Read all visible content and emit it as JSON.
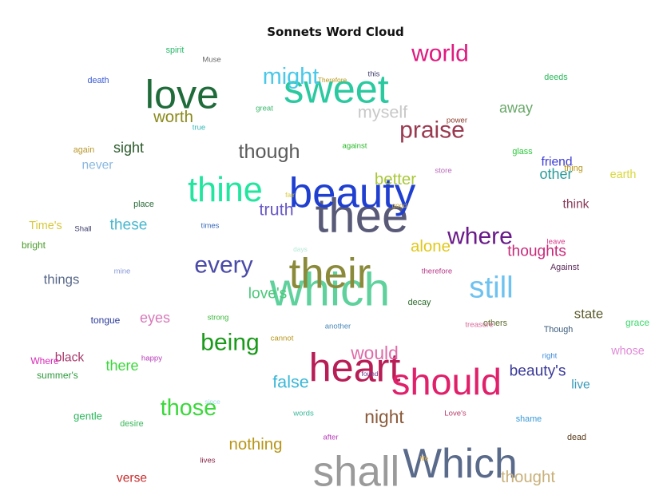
{
  "chart_data": {
    "type": "wordcloud",
    "title": "Sonnets Word Cloud",
    "words": [
      {
        "text": "thee",
        "size": 5.0,
        "color": "#585a78"
      },
      {
        "text": "which",
        "size": 4.9,
        "color": "#5ed19c"
      },
      {
        "text": "beauty",
        "size": 4.4,
        "color": "#1f3fd0"
      },
      {
        "text": "their",
        "size": 4.4,
        "color": "#8a8a3a"
      },
      {
        "text": "shall",
        "size": 4.4,
        "color": "#9a9a9a"
      },
      {
        "text": "Which",
        "size": 4.3,
        "color": "#5a6a8a"
      },
      {
        "text": "heart",
        "size": 4.2,
        "color": "#b81d55"
      },
      {
        "text": "sweet",
        "size": 4.2,
        "color": "#2bc9a0"
      },
      {
        "text": "love",
        "size": 4.2,
        "color": "#1f6b3a"
      },
      {
        "text": "should",
        "size": 3.9,
        "color": "#e0206a"
      },
      {
        "text": "thine",
        "size": 3.6,
        "color": "#22e6a0"
      },
      {
        "text": "still",
        "size": 3.2,
        "color": "#6ec2f0"
      },
      {
        "text": "world",
        "size": 2.5,
        "color": "#e01a80"
      },
      {
        "text": "might",
        "size": 2.4,
        "color": "#4ac8e8"
      },
      {
        "text": "every",
        "size": 2.5,
        "color": "#4a4aa8"
      },
      {
        "text": "being",
        "size": 2.5,
        "color": "#1a9a1a"
      },
      {
        "text": "where",
        "size": 2.5,
        "color": "#6a1a8a"
      },
      {
        "text": "praise",
        "size": 2.5,
        "color": "#9a3a50"
      },
      {
        "text": "those",
        "size": 2.4,
        "color": "#3ad83a"
      },
      {
        "text": "though",
        "size": 2.1,
        "color": "#5a5a5a"
      },
      {
        "text": "night",
        "size": 1.9,
        "color": "#8a5a3a"
      },
      {
        "text": "would",
        "size": 1.9,
        "color": "#e06aa8"
      },
      {
        "text": "truth",
        "size": 1.8,
        "color": "#6a5ac8"
      },
      {
        "text": "myself",
        "size": 1.8,
        "color": "#c8c8c8"
      },
      {
        "text": "alone",
        "size": 1.7,
        "color": "#e0c81a"
      },
      {
        "text": "false",
        "size": 1.8,
        "color": "#3ab8d8"
      },
      {
        "text": "nothing",
        "size": 1.7,
        "color": "#b8961a"
      },
      {
        "text": "thought",
        "size": 1.7,
        "color": "#c8b07a"
      },
      {
        "text": "better",
        "size": 1.7,
        "color": "#a8c83a"
      },
      {
        "text": "worth",
        "size": 1.7,
        "color": "#8a8a1a"
      },
      {
        "text": "thoughts",
        "size": 1.6,
        "color": "#c82a7a"
      },
      {
        "text": "beauty's",
        "size": 1.6,
        "color": "#3a3a9a"
      },
      {
        "text": "love's",
        "size": 1.6,
        "color": "#4ac87a"
      },
      {
        "text": "these",
        "size": 1.6,
        "color": "#4ab8d0"
      },
      {
        "text": "away",
        "size": 1.5,
        "color": "#6aa86a"
      },
      {
        "text": "sight",
        "size": 1.5,
        "color": "#2a5a2a"
      },
      {
        "text": "other",
        "size": 1.5,
        "color": "#2a9a9a"
      },
      {
        "text": "there",
        "size": 1.5,
        "color": "#3ad83a"
      },
      {
        "text": "eyes",
        "size": 1.5,
        "color": "#d87ab8"
      },
      {
        "text": "state",
        "size": 1.4,
        "color": "#5a5a2a"
      },
      {
        "text": "things",
        "size": 1.4,
        "color": "#5a6a8a"
      },
      {
        "text": "friend",
        "size": 1.3,
        "color": "#3a3ad8"
      },
      {
        "text": "verse",
        "size": 1.3,
        "color": "#c82a2a"
      },
      {
        "text": "never",
        "size": 1.3,
        "color": "#8ab8e0"
      },
      {
        "text": "think",
        "size": 1.3,
        "color": "#8a3a5a"
      },
      {
        "text": "black",
        "size": 1.3,
        "color": "#a83a6a"
      },
      {
        "text": "live",
        "size": 1.3,
        "color": "#3a9ab8"
      },
      {
        "text": "whose",
        "size": 1.2,
        "color": "#e08ad8"
      },
      {
        "text": "earth",
        "size": 1.2,
        "color": "#d8d83a"
      },
      {
        "text": "Time's",
        "size": 1.2,
        "color": "#d8c83a"
      },
      {
        "text": "gentle",
        "size": 1.1,
        "color": "#2ab85a"
      },
      {
        "text": "tongue",
        "size": 1.0,
        "color": "#2a3a9a"
      },
      {
        "text": "bright",
        "size": 1.0,
        "color": "#4a9a2a"
      },
      {
        "text": "grace",
        "size": 1.0,
        "color": "#3ad86a"
      },
      {
        "text": "Where",
        "size": 1.0,
        "color": "#d82ab8"
      },
      {
        "text": "summer's",
        "size": 1.0,
        "color": "#2a9a3a"
      },
      {
        "text": "glass",
        "size": 0.9,
        "color": "#2ac83a"
      },
      {
        "text": "deeds",
        "size": 0.9,
        "color": "#2ab85a"
      },
      {
        "text": "spirit",
        "size": 0.9,
        "color": "#2ab86a"
      },
      {
        "text": "death",
        "size": 0.9,
        "color": "#3a5ad8"
      },
      {
        "text": "again",
        "size": 0.9,
        "color": "#b8962a"
      },
      {
        "text": "place",
        "size": 0.9,
        "color": "#2a6a3a"
      },
      {
        "text": "shame",
        "size": 0.9,
        "color": "#3a9ad8"
      },
      {
        "text": "dead",
        "size": 0.9,
        "color": "#5a3a1a"
      },
      {
        "text": "Though",
        "size": 0.9,
        "color": "#3a5a7a"
      },
      {
        "text": "others",
        "size": 0.9,
        "color": "#5a6a2a"
      },
      {
        "text": "decay",
        "size": 0.9,
        "color": "#2a6a2a"
      },
      {
        "text": "thing",
        "size": 0.9,
        "color": "#b8961a"
      },
      {
        "text": "desire",
        "size": 0.9,
        "color": "#3ab85a"
      },
      {
        "text": "Against",
        "size": 0.9,
        "color": "#5a2a5a"
      },
      {
        "text": "right",
        "size": 0.8,
        "color": "#3a8ad8"
      },
      {
        "text": "Muse",
        "size": 0.8,
        "color": "#6a6a6a"
      },
      {
        "text": "this",
        "size": 0.8,
        "color": "#3a3a6a"
      },
      {
        "text": "power",
        "size": 0.8,
        "color": "#8a3a2a"
      },
      {
        "text": "store",
        "size": 0.8,
        "color": "#b86ab8"
      },
      {
        "text": "great",
        "size": 0.8,
        "color": "#3ab86a"
      },
      {
        "text": "true",
        "size": 0.8,
        "color": "#3ab8b8"
      },
      {
        "text": "strong",
        "size": 0.8,
        "color": "#3ab83a"
      },
      {
        "text": "cannot",
        "size": 0.8,
        "color": "#b8961a"
      },
      {
        "text": "another",
        "size": 0.8,
        "color": "#4a8ab8"
      },
      {
        "text": "treasure",
        "size": 0.8,
        "color": "#d86a9a"
      },
      {
        "text": "therefore",
        "size": 0.8,
        "color": "#b83a8a"
      },
      {
        "text": "leave",
        "size": 0.8,
        "color": "#d83a8a"
      },
      {
        "text": "happy",
        "size": 0.8,
        "color": "#b83ab8"
      },
      {
        "text": "against",
        "size": 0.8,
        "color": "#2ab82a"
      },
      {
        "text": "times",
        "size": 0.8,
        "color": "#3a6ab8"
      },
      {
        "text": "mine",
        "size": 0.8,
        "color": "#8a9ad8"
      },
      {
        "text": "Shall",
        "size": 0.8,
        "color": "#3a3a6a"
      },
      {
        "text": "words",
        "size": 0.8,
        "color": "#3ab89a"
      },
      {
        "text": "Love's",
        "size": 0.8,
        "color": "#b83a6a"
      },
      {
        "text": "after",
        "size": 0.8,
        "color": "#b83ab8"
      },
      {
        "text": "lives",
        "size": 0.8,
        "color": "#8a2a4a"
      },
      {
        "text": "Therefore",
        "size": 0.7,
        "color": "#b8961a"
      },
      {
        "text": "since",
        "size": 0.7,
        "color": "#a8d8e8"
      },
      {
        "text": "days",
        "size": 0.7,
        "color": "#b8e8d8"
      },
      {
        "text": "found",
        "size": 0.7,
        "color": "#6a3a8a"
      },
      {
        "text": "fair",
        "size": 0.7,
        "color": "#d8c83a"
      },
      {
        "text": "good",
        "size": 0.7,
        "color": "#c8a83a"
      },
      {
        "text": "life",
        "size": 0.7,
        "color": "#d8a83a"
      }
    ]
  }
}
